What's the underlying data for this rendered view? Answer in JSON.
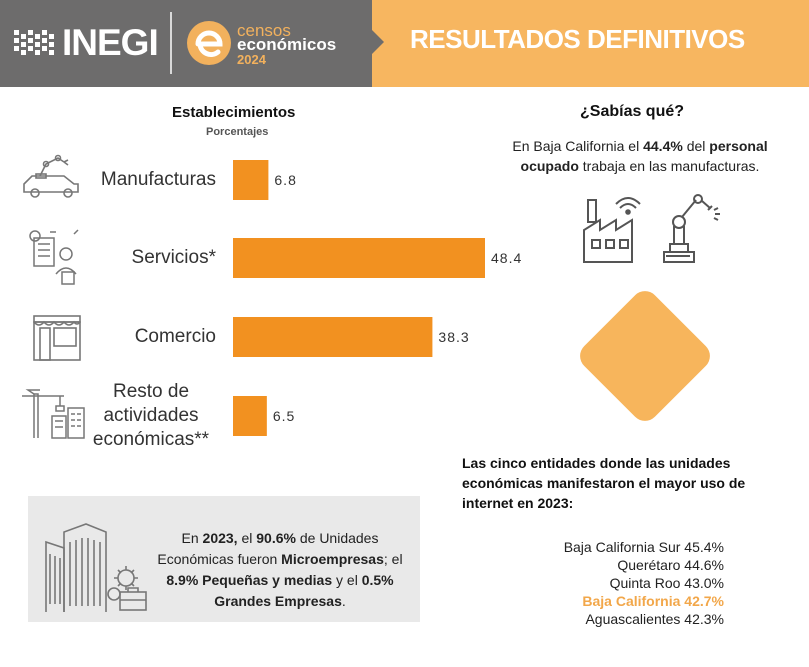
{
  "header": {
    "org_logo_text": "INEGI",
    "census_line1": "censos",
    "census_line2": "económicos",
    "census_year": "2024",
    "title": "RESULTADOS DEFINITIVOS"
  },
  "colors": {
    "bar": "#f29120",
    "header_gray": "#6d6c6c",
    "header_orange": "#f7b660",
    "highlight": "#f2a74a"
  },
  "chart_data": {
    "type": "bar",
    "orientation": "horizontal",
    "title": "Establecimientos",
    "subtitle": "Porcentajes",
    "categories": [
      "Manufacturas",
      "Servicios*",
      "Comercio",
      "Resto de actividades económicas**"
    ],
    "category_lines": [
      [
        "Manufacturas"
      ],
      [
        "Servicios*"
      ],
      [
        "Comercio"
      ],
      [
        "Resto de",
        "actividades",
        "económicas**"
      ]
    ],
    "values": [
      6.8,
      48.4,
      38.3,
      6.5
    ],
    "value_labels": [
      "6.8",
      "48.4",
      "38.3",
      "6.5"
    ],
    "xlim": [
      0,
      48.4
    ],
    "grid": false
  },
  "sabias": {
    "title": "¿Sabías  qué?",
    "t1": "En Baja California el ",
    "b1": "44.4%",
    "t2": " del ",
    "b2": "personal ocupado",
    "t3": " trabaja en las manufacturas."
  },
  "top5": {
    "title": "Las cinco entidades donde las unidades económicas manifestaron el mayor uso de internet en 2023:",
    "items": [
      "Baja California Sur 45.4%",
      "Querétaro 44.6%",
      "Quinta Roo 43.0%",
      "Baja California  42.7%",
      "Aguascalientes 42.3%"
    ]
  },
  "micro": {
    "t1": "En ",
    "b1": "2023,",
    "t2": " el ",
    "b2": "90.6%",
    "t3": " de Unidades Económicas fueron ",
    "b3": "Microempresas",
    "t4": "; el ",
    "b4": "8.9% Pequeñas y medias",
    "t5": " y el ",
    "b5": "0.5% Grandes Empresas",
    "t6": "."
  },
  "icons": [
    "robot-car-icon",
    "services-worker-icon",
    "storefront-icon",
    "construction-icon",
    "factory-wifi-icon",
    "robot-arm-icon",
    "buildings-gears-icon"
  ]
}
